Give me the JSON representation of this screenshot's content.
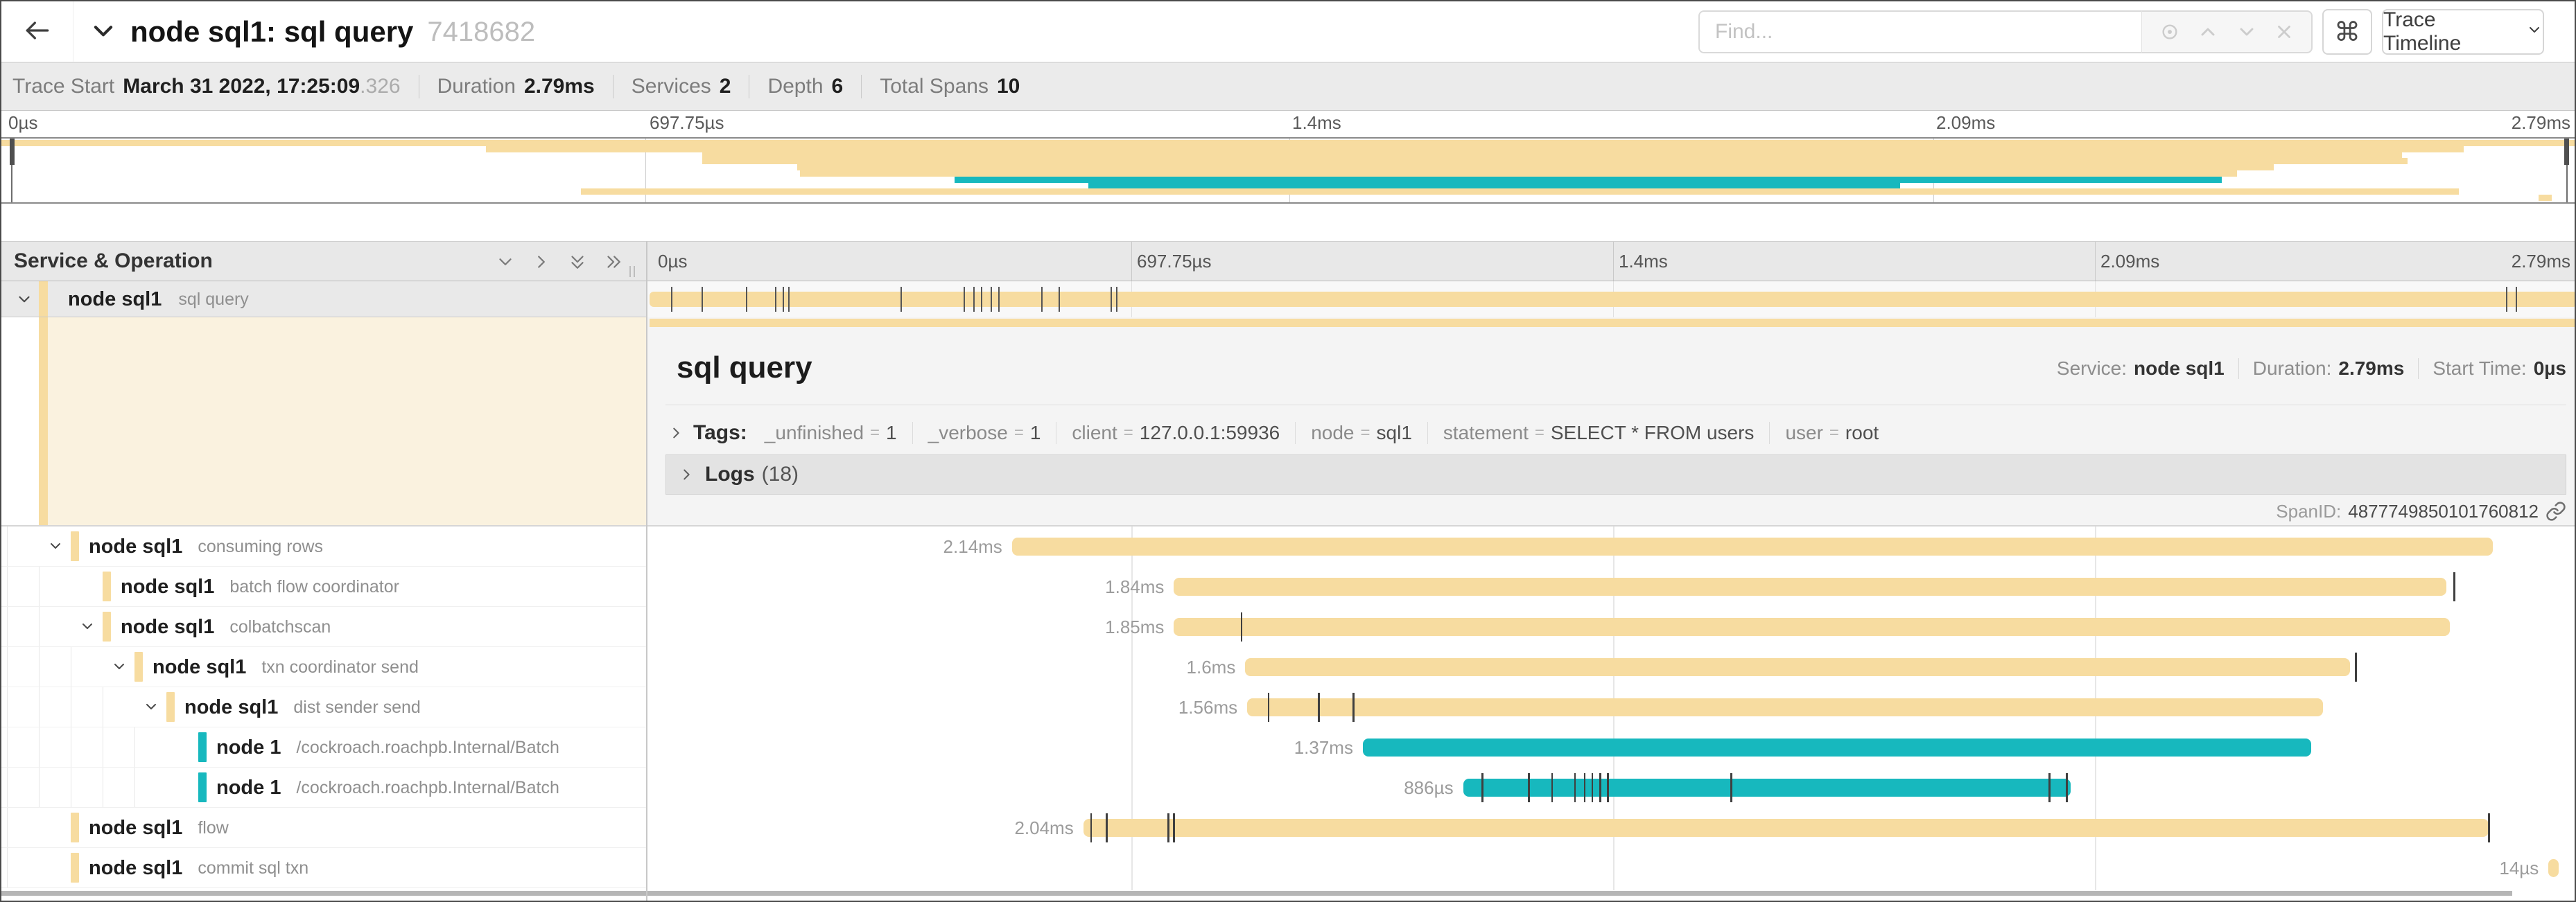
{
  "colors": {
    "span_tan": "#F7DCA0",
    "span_teal": "#17B8BE",
    "selected_row_bg": "#e9e9e9",
    "detail_left_bg": "#FAF2DF"
  },
  "header": {
    "title": "node sql1: sql query",
    "trace_id": "7418682",
    "find_placeholder": "Find...",
    "command_symbol": "⌘",
    "view_selector": "Trace Timeline"
  },
  "summary": {
    "items": [
      {
        "label": "Trace Start",
        "value": "March 31 2022, 17:25:09",
        "suffix": ".326"
      },
      {
        "label": "Duration",
        "value": "2.79ms"
      },
      {
        "label": "Services",
        "value": "2"
      },
      {
        "label": "Depth",
        "value": "6"
      },
      {
        "label": "Total Spans",
        "value": "10"
      }
    ]
  },
  "axis": {
    "ticks": [
      "0µs",
      "697.75µs",
      "1.4ms",
      "2.09ms",
      "2.79ms"
    ]
  },
  "section": {
    "title": "Service & Operation"
  },
  "spans": [
    {
      "service": "node sql1",
      "operation": "sql query",
      "depth": 0,
      "color": "tan",
      "caret": true,
      "selected": true,
      "start": 0,
      "end": 1,
      "duration": "2.79ms",
      "ticks": [
        0.011,
        0.027,
        0.05,
        0.065,
        0.069,
        0.072,
        0.13,
        0.163,
        0.168,
        0.172,
        0.177,
        0.181,
        0.203,
        0.212,
        0.239,
        0.242,
        0.963,
        0.968
      ]
    },
    {
      "service": "node sql1",
      "operation": "consuming rows",
      "depth": 1,
      "color": "tan",
      "caret": true,
      "start": 0.188,
      "end": 0.956,
      "duration": "2.14ms",
      "ticks": []
    },
    {
      "service": "node sql1",
      "operation": "batch flow coordinator",
      "depth": 2,
      "color": "tan",
      "caret": false,
      "start": 0.272,
      "end": 0.932,
      "duration": "1.84ms",
      "ticks": [
        0.936
      ]
    },
    {
      "service": "node sql1",
      "operation": "colbatchscan",
      "depth": 2,
      "color": "tan",
      "caret": true,
      "start": 0.272,
      "end": 0.934,
      "duration": "1.85ms",
      "ticks": [
        0.307
      ]
    },
    {
      "service": "node sql1",
      "operation": "txn coordinator send",
      "depth": 3,
      "color": "tan",
      "caret": true,
      "start": 0.309,
      "end": 0.882,
      "duration": "1.6ms",
      "ticks": [
        0.885
      ]
    },
    {
      "service": "node sql1",
      "operation": "dist sender send",
      "depth": 4,
      "color": "tan",
      "caret": true,
      "start": 0.31,
      "end": 0.868,
      "duration": "1.56ms",
      "ticks": [
        0.321,
        0.347,
        0.365
      ]
    },
    {
      "service": "node 1",
      "operation": "/cockroach.roachpb.Internal/Batch",
      "depth": 5,
      "color": "teal",
      "caret": false,
      "start": 0.37,
      "end": 0.862,
      "duration": "1.37ms",
      "ticks": []
    },
    {
      "service": "node 1",
      "operation": "/cockroach.roachpb.Internal/Batch",
      "depth": 5,
      "color": "teal",
      "caret": false,
      "start": 0.422,
      "end": 0.737,
      "duration": "886µs",
      "ticks": [
        0.432,
        0.456,
        0.468,
        0.48,
        0.485,
        0.489,
        0.493,
        0.497,
        0.561,
        0.726,
        0.735
      ]
    },
    {
      "service": "node sql1",
      "operation": "flow",
      "depth": 1,
      "color": "tan",
      "caret": false,
      "start": 0.225,
      "end": 0.954,
      "duration": "2.04ms",
      "ticks": [
        0.229,
        0.237,
        0.269,
        0.272,
        0.954
      ]
    },
    {
      "service": "node sql1",
      "operation": "commit sql txn",
      "depth": 1,
      "color": "tan",
      "caret": false,
      "start": 0.985,
      "end": 0.99,
      "duration": "14µs",
      "ticks": []
    }
  ],
  "detail": {
    "title": "sql query",
    "eq": "=",
    "meta": [
      {
        "label": "Service:",
        "value": "node sql1"
      },
      {
        "label": "Duration:",
        "value": "2.79ms"
      },
      {
        "label": "Start Time:",
        "value": "0µs"
      }
    ],
    "tags_label": "Tags:",
    "tags": [
      {
        "key": "_unfinished",
        "value": "1"
      },
      {
        "key": "_verbose",
        "value": "1"
      },
      {
        "key": "client",
        "value": "127.0.0.1:59936"
      },
      {
        "key": "node",
        "value": "sql1"
      },
      {
        "key": "statement",
        "value": "SELECT * FROM users"
      },
      {
        "key": "user",
        "value": "root"
      }
    ],
    "logs_label": "Logs",
    "logs_count": "(18)",
    "span_id_label": "SpanID:",
    "span_id": "4877749850101760812"
  }
}
